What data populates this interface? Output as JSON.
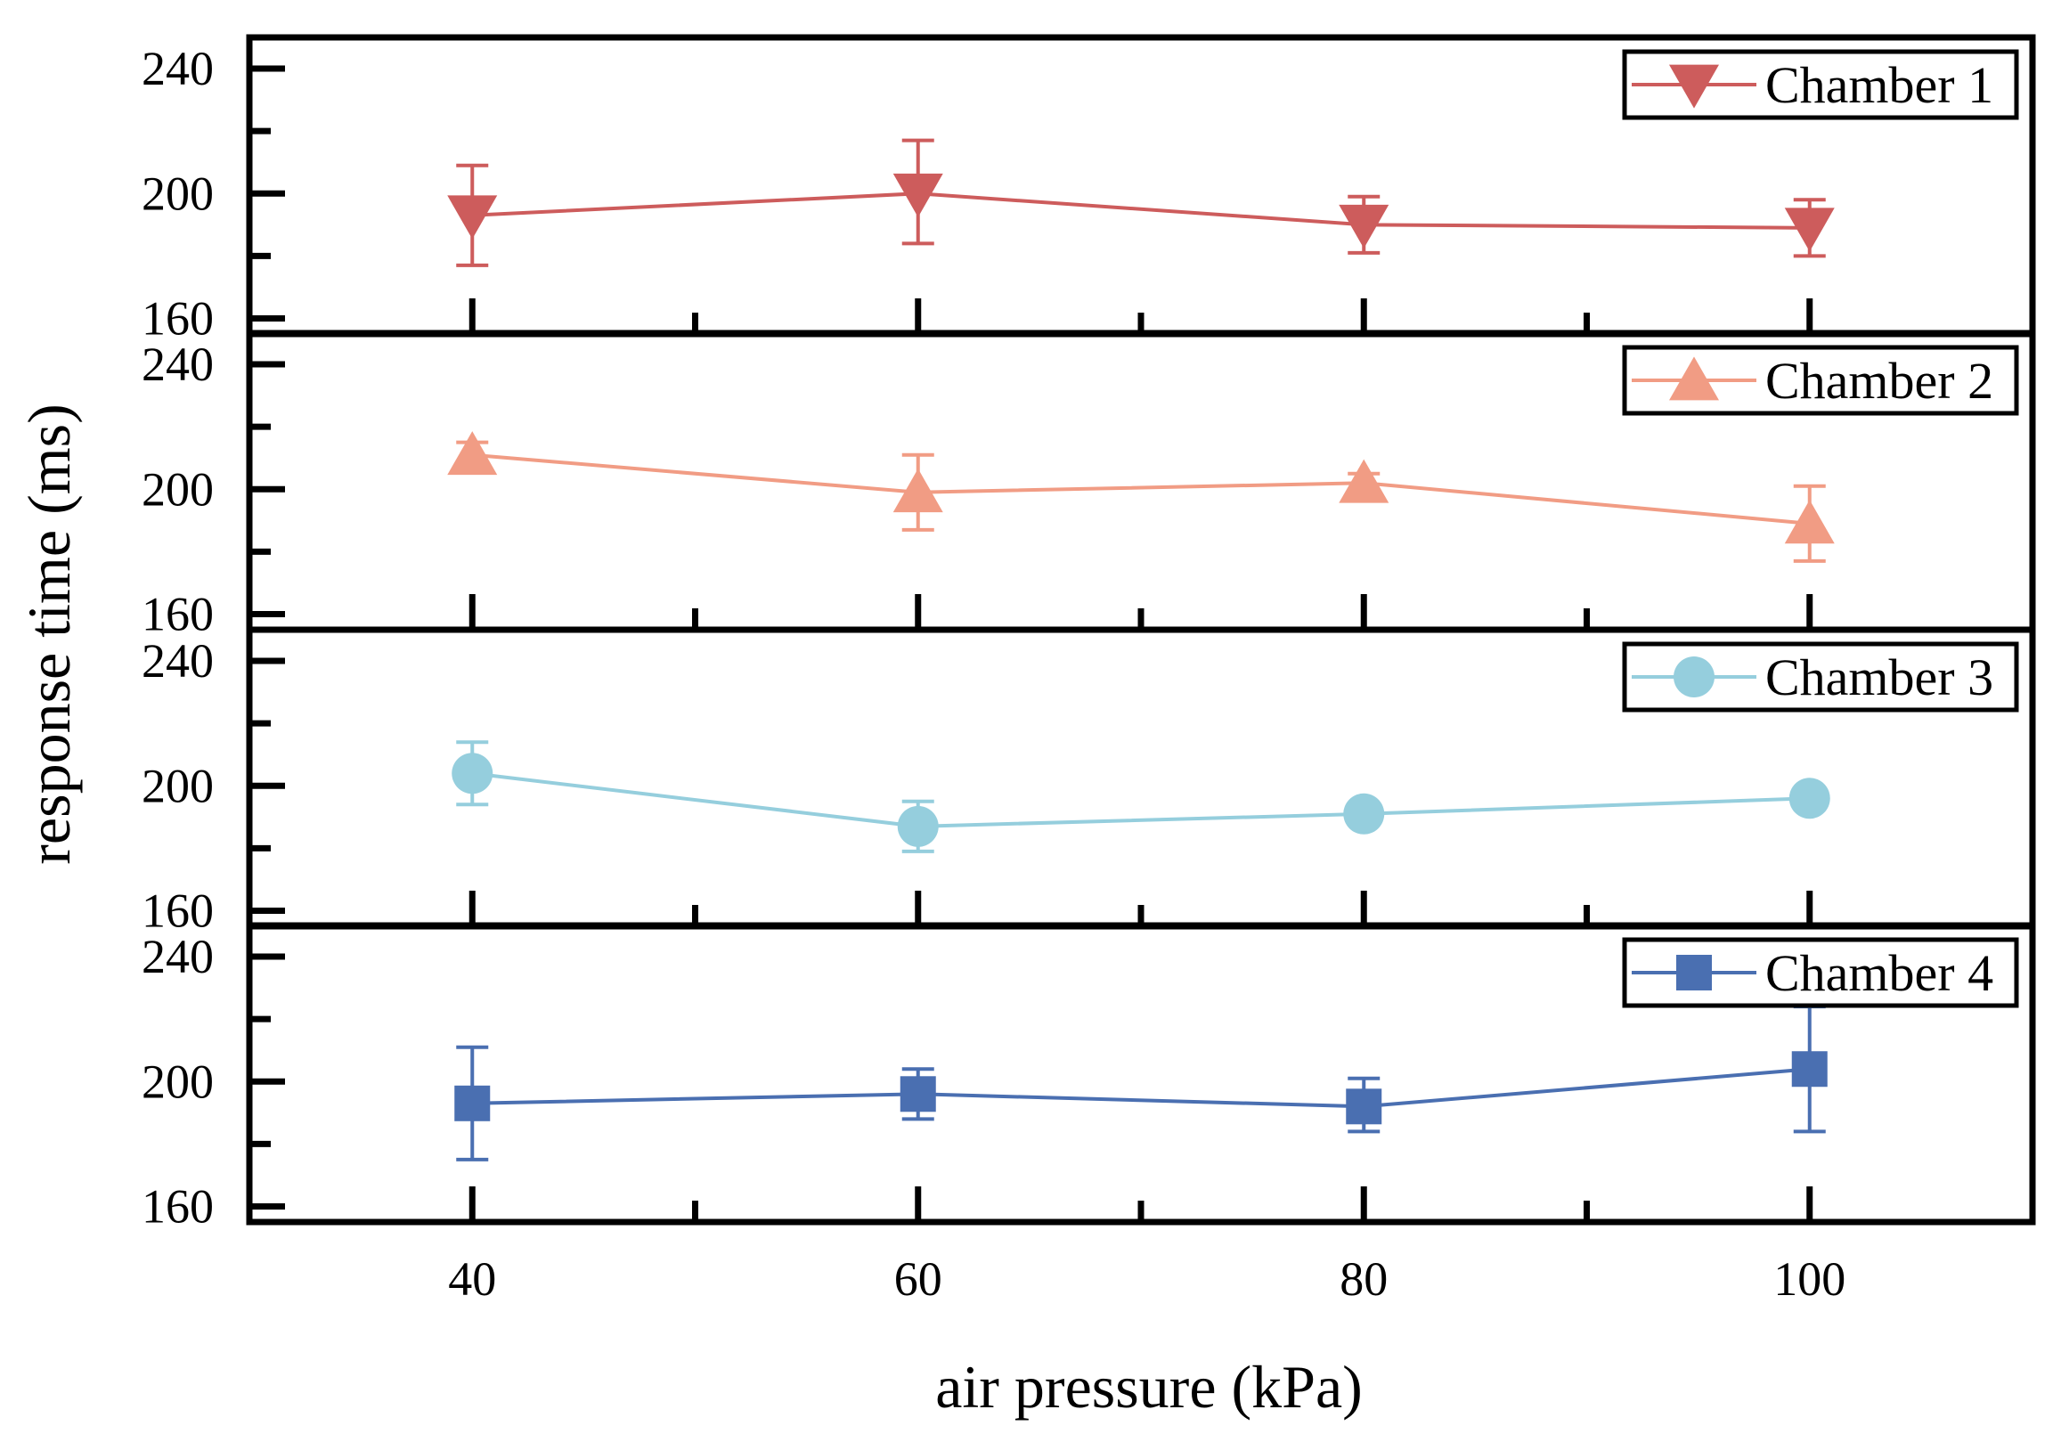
{
  "chart_data": {
    "type": "line",
    "xlabel": "air pressure (kPa)",
    "ylabel": "response time (ms)",
    "x": [
      40,
      60,
      80,
      100
    ],
    "x_ticks": [
      40,
      60,
      80,
      100
    ],
    "x_tick_labels": [
      "40",
      "60",
      "80",
      "100"
    ],
    "xlim": [
      30,
      110
    ],
    "ylim": [
      155,
      250
    ],
    "y_ticks": [
      160,
      200,
      240
    ],
    "y_tick_labels": [
      "160",
      "200",
      "240"
    ],
    "grid": false,
    "legend_position": "top-right",
    "series": [
      {
        "name": "Chamber 1",
        "marker": "triangle-down",
        "color": "#cd5c5c",
        "values": [
          193,
          200,
          190,
          189
        ],
        "err_low": [
          177,
          184,
          181,
          180
        ],
        "err_high": [
          209,
          217,
          199,
          198
        ]
      },
      {
        "name": "Chamber 2",
        "marker": "triangle-up",
        "color": "#f19c84",
        "values": [
          211,
          199,
          202,
          189
        ],
        "err_low": [
          207,
          187,
          199,
          177
        ],
        "err_high": [
          215,
          211,
          205,
          201
        ]
      },
      {
        "name": "Chamber 3",
        "marker": "circle",
        "color": "#95cedd",
        "values": [
          204,
          187,
          191,
          196
        ],
        "err_low": [
          194,
          179,
          188,
          194
        ],
        "err_high": [
          214,
          195,
          194,
          198
        ]
      },
      {
        "name": "Chamber 4",
        "marker": "square",
        "color": "#4a6fb1",
        "values": [
          193,
          196,
          192,
          204
        ],
        "err_low": [
          175,
          188,
          184,
          184
        ],
        "err_high": [
          211,
          204,
          201,
          224
        ]
      }
    ]
  }
}
